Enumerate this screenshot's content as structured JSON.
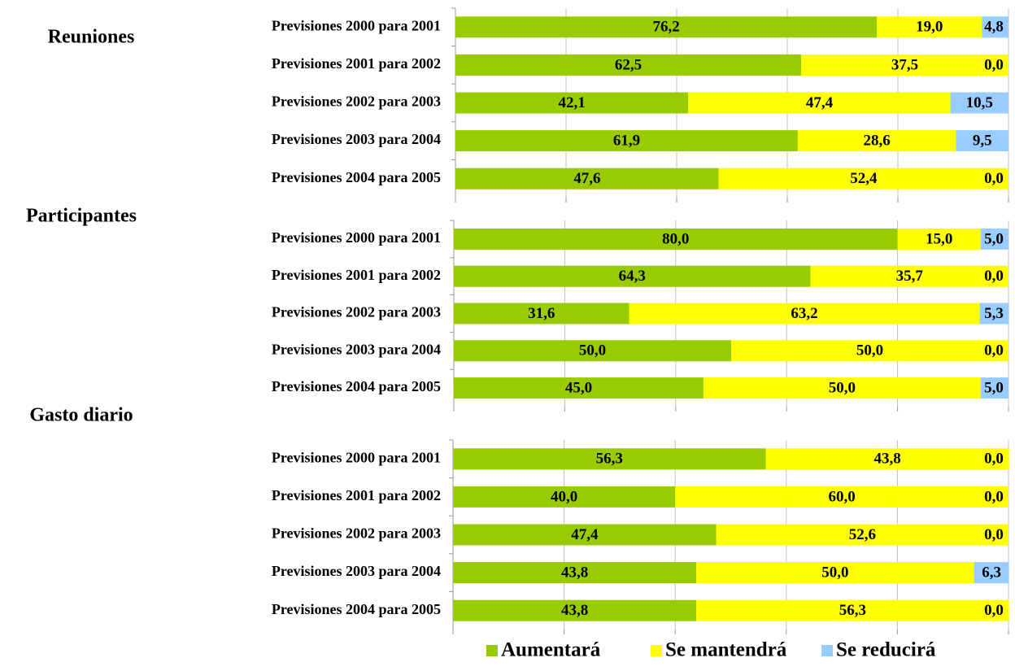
{
  "chart_data": [
    {
      "type": "stacked_bar_horizontal",
      "title": "Reuniones",
      "categories": [
        "Previsiones 2000 para 2001",
        "Previsiones 2001 para 2002",
        "Previsiones 2002 para 2003",
        "Previsiones 2003 para 2004",
        "Previsiones 2004 para 2005"
      ],
      "series": [
        {
          "color": "#99cc00",
          "values": [
            76.2,
            62.5,
            42.1,
            61.9,
            47.6
          ],
          "value_labels": [
            "76,2",
            "62,5",
            "42,1",
            "61,9",
            "47,6"
          ]
        },
        {
          "color": "#ffff00",
          "values": [
            19.0,
            37.5,
            47.4,
            28.6,
            52.4
          ],
          "value_labels": [
            "19,0",
            "37,5",
            "47,4",
            "28,6",
            "52,4"
          ]
        },
        {
          "color": "#99ccff",
          "values": [
            4.8,
            0.0,
            10.5,
            9.5,
            0.0
          ],
          "value_labels": [
            "4,8",
            "0,0",
            "10,5",
            "9,5",
            "0,0"
          ]
        }
      ],
      "xlim": [
        0,
        100
      ],
      "xticks": [
        0,
        20,
        40,
        60,
        80,
        100
      ],
      "grid": true
    },
    {
      "type": "stacked_bar_horizontal",
      "title": "Participantes",
      "categories": [
        "Previsiones 2000 para 2001",
        "Previsiones 2001 para 2002",
        "Previsiones 2002 para 2003",
        "Previsiones 2003 para 2004",
        "Previsiones 2004 para 2005"
      ],
      "series": [
        {
          "color": "#99cc00",
          "values": [
            80.0,
            64.3,
            31.6,
            50.0,
            45.0
          ],
          "value_labels": [
            "80,0",
            "64,3",
            "31,6",
            "50,0",
            "45,0"
          ]
        },
        {
          "color": "#ffff00",
          "values": [
            15.0,
            35.7,
            63.2,
            50.0,
            50.0
          ],
          "value_labels": [
            "15,0",
            "35,7",
            "63,2",
            "50,0",
            "50,0"
          ]
        },
        {
          "color": "#99ccff",
          "values": [
            5.0,
            0.0,
            5.3,
            0.0,
            5.0
          ],
          "value_labels": [
            "5,0",
            "0,0",
            "5,3",
            "0,0",
            "5,0"
          ]
        }
      ],
      "xlim": [
        0,
        100
      ],
      "xticks": [
        0,
        20,
        40,
        60,
        80,
        100
      ],
      "grid": true
    },
    {
      "type": "stacked_bar_horizontal",
      "title": "Gasto diario",
      "categories": [
        "Previsiones 2000 para 2001",
        "Previsiones 2001 para 2002",
        "Previsiones 2002 para 2003",
        "Previsiones 2003 para 2004",
        "Previsiones 2004 para 2005"
      ],
      "series": [
        {
          "name": "Aumentará",
          "color": "#99cc00",
          "values": [
            56.3,
            40.0,
            47.4,
            43.8,
            43.8
          ],
          "value_labels": [
            "56,3",
            "40,0",
            "47,4",
            "43,8",
            "43,8"
          ]
        },
        {
          "name": "Se mantendrá",
          "color": "#ffff00",
          "values": [
            43.8,
            60.0,
            52.6,
            50.0,
            56.3
          ],
          "value_labels": [
            "43,8",
            "60,0",
            "52,6",
            "50,0",
            "56,3"
          ]
        },
        {
          "name": "Se reducirá",
          "color": "#99ccff",
          "values": [
            0.0,
            0.0,
            0.0,
            6.3,
            0.0
          ],
          "value_labels": [
            "0,0",
            "0,0",
            "0,0",
            "6,3",
            "0,0"
          ]
        }
      ],
      "xlim": [
        0,
        100
      ],
      "xticks": [
        0,
        20,
        40,
        60,
        80,
        100
      ],
      "grid": true,
      "legend": "bottom"
    }
  ]
}
